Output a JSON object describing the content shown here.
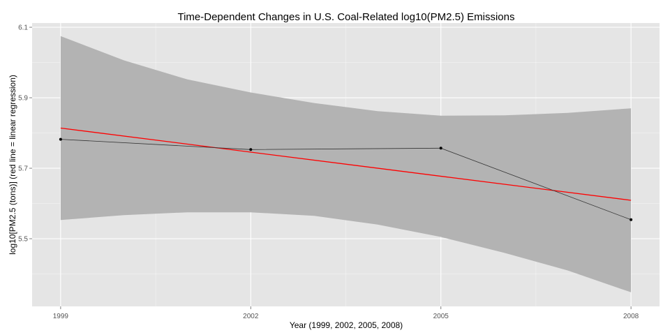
{
  "chart_data": {
    "type": "line",
    "title": "Time-Dependent Changes in U.S. Coal-Related log10(PM2.5) Emissions",
    "xlabel": "Year (1999, 2002, 2005, 2008)",
    "ylabel": "log10[PM2.5 (tons)]  (red line = linear regression)",
    "x_ticks": [
      1999,
      2002,
      2005,
      2008
    ],
    "y_ticks": [
      5.5,
      5.7,
      5.9,
      6.1
    ],
    "xlim": [
      1998.55,
      2008.45
    ],
    "ylim": [
      5.308,
      6.112
    ],
    "grid": true,
    "series": [
      {
        "x": [
          1999,
          2002,
          2005,
          2008
        ],
        "values": [
          5.782,
          5.753,
          5.757,
          5.554
        ],
        "color": "#333333",
        "style": "line+points"
      }
    ],
    "regression": {
      "x": [
        1999,
        2008
      ],
      "values": [
        5.814,
        5.609
      ],
      "color": "#ff0000"
    },
    "confidence_band": {
      "x": [
        1999,
        2000,
        2001,
        2002,
        2003,
        2004,
        2005,
        2006,
        2007,
        2008
      ],
      "upper": [
        6.075,
        6.006,
        5.952,
        5.915,
        5.885,
        5.862,
        5.849,
        5.85,
        5.857,
        5.87
      ],
      "lower": [
        5.553,
        5.567,
        5.575,
        5.575,
        5.565,
        5.54,
        5.505,
        5.46,
        5.41,
        5.348
      ],
      "color": "#b3b3b3"
    },
    "colors": {
      "panel": "#e5e5e5",
      "gridline": "#ffffff"
    }
  }
}
